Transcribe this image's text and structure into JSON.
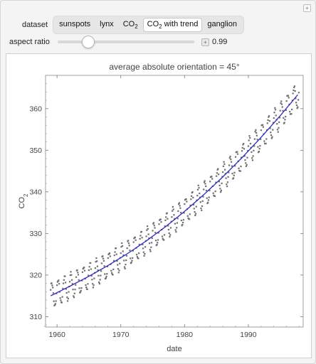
{
  "controls": {
    "dataset_label": "dataset",
    "dataset_options": [
      "sunspots",
      "lynx",
      "CO2",
      "CO2 with trend",
      "ganglion"
    ],
    "dataset_selected": "CO2 with trend",
    "aspect_label": "aspect ratio",
    "aspect_value": "0.99",
    "aspect_fraction": 0.22
  },
  "chart_data": {
    "type": "scatter",
    "title": "average absolute orientation = 45°",
    "xlabel": "date",
    "ylabel": "CO2",
    "xlim": [
      1958.2,
      1998.6
    ],
    "ylim": [
      307.5,
      368.0
    ],
    "xticks": [
      1960,
      1970,
      1980,
      1990
    ],
    "yticks": [
      310,
      320,
      330,
      340,
      350,
      360
    ],
    "grid": false,
    "series": [
      {
        "kind": "points",
        "color": "#707070",
        "sampling": "monthly",
        "x_start": 1959.0,
        "x_end": 1997.92,
        "seasonal_amplitude": 3.0
      },
      {
        "kind": "trend-line",
        "color": "#2a2ac8",
        "x": [
          1959,
          1962,
          1965,
          1968,
          1971,
          1974,
          1977,
          1980,
          1983,
          1986,
          1989,
          1992,
          1995,
          1998
        ],
        "y": [
          315.0,
          317.3,
          319.7,
          322.3,
          325.1,
          328.2,
          331.6,
          335.3,
          339.3,
          343.6,
          348.2,
          353.1,
          358.3,
          363.8
        ]
      }
    ]
  }
}
